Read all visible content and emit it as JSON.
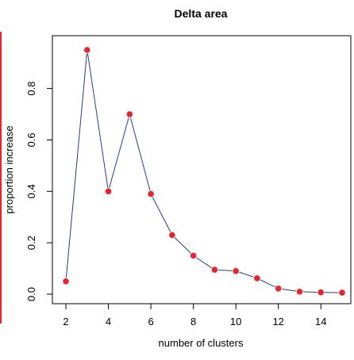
{
  "colors": {
    "line": "#2b3a8f",
    "point": "#e8242c",
    "frame": "#000000",
    "left_strip": "#e8242c"
  },
  "chart_data": {
    "type": "line",
    "title": "Delta area",
    "xlabel": "number of clusters",
    "ylabel": "proportion increase",
    "x": [
      2,
      3,
      4,
      5,
      6,
      7,
      8,
      9,
      10,
      11,
      12,
      13,
      14,
      15
    ],
    "y": [
      0.05,
      0.95,
      0.4,
      0.7,
      0.39,
      0.23,
      0.15,
      0.095,
      0.09,
      0.062,
      0.022,
      0.01,
      0.007,
      0.006
    ],
    "xlim": [
      2,
      15
    ],
    "ylim": [
      0,
      0.95
    ],
    "xticks": [
      2,
      4,
      6,
      8,
      10,
      12,
      14
    ],
    "yticks": [
      0.0,
      0.2,
      0.4,
      0.6,
      0.8
    ],
    "ytick_labels": [
      "0.0",
      "0.2",
      "0.4",
      "0.6",
      "0.8"
    ],
    "grid": false,
    "legend": "none"
  }
}
